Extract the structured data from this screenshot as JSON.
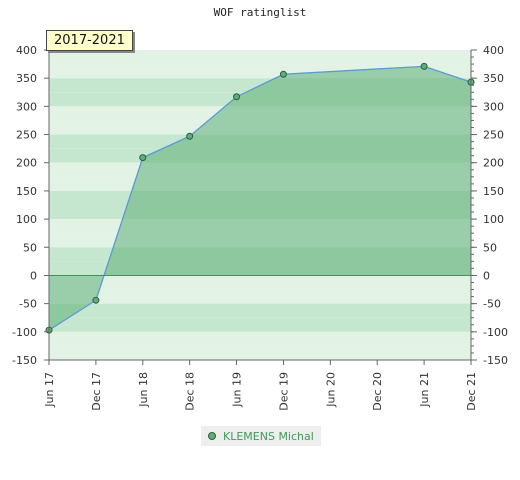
{
  "chart_data": {
    "type": "area",
    "title": "WOF ratinglist",
    "badge": "2017-2021",
    "x": [
      "Jun 17",
      "Dec 17",
      "Jun 18",
      "Dec 18",
      "Jun 19",
      "Dec 19",
      "Jun 20",
      "Dec 20",
      "Jun 21",
      "Dec 21"
    ],
    "y_ticks": [
      400,
      350,
      300,
      250,
      200,
      150,
      100,
      50,
      0,
      -50,
      -100,
      -150
    ],
    "ylim": [
      -150,
      400
    ],
    "series": [
      {
        "name": "KLEMENS Michal",
        "points": [
          {
            "x": "Jun 17",
            "y": -97
          },
          {
            "x": "Dec 17",
            "y": -44
          },
          {
            "x": "Jun 18",
            "y": 209
          },
          {
            "x": "Dec 18",
            "y": 247
          },
          {
            "x": "Jun 19",
            "y": 317
          },
          {
            "x": "Dec 19",
            "y": 357
          },
          {
            "x": "Jun 21",
            "y": 371
          },
          {
            "x": "Dec 21",
            "y": 343
          }
        ]
      }
    ],
    "grid": true,
    "legend_position": "bottom-center",
    "colors": {
      "fill": "#5fae78",
      "line": "#5b9bd5",
      "marker": "#5fae78",
      "band_light": "#e2f3e6",
      "band_mid": "#c6e7cf",
      "band_dark": "#9fd3ae"
    }
  }
}
